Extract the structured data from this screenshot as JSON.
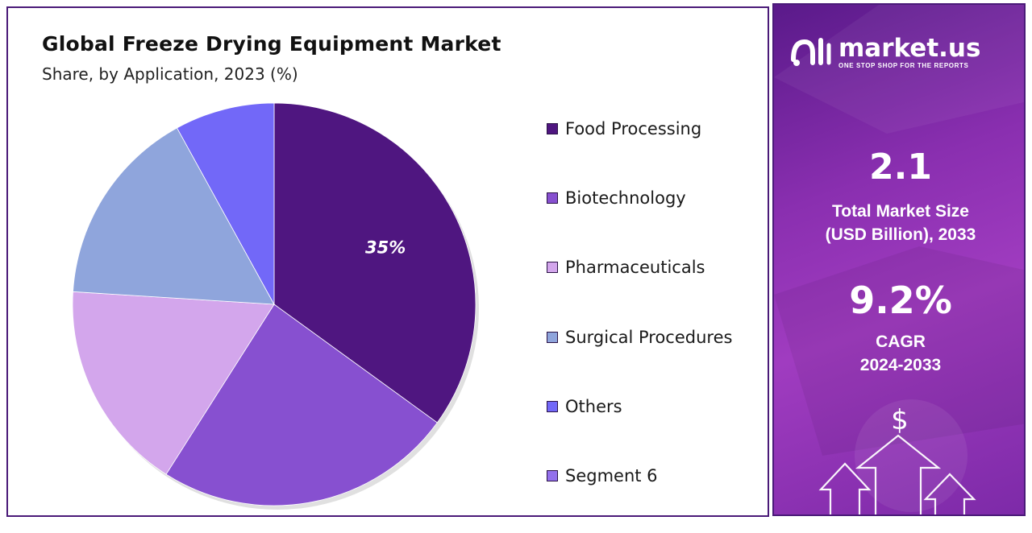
{
  "chart_data": {
    "type": "pie",
    "title": "Global Freeze Drying Equipment Market",
    "subtitle": "Share, by Application, 2023 (%)",
    "labels": [
      "Food Processing",
      "Biotechnology",
      "Pharmaceuticals",
      "Surgical Procedures",
      "Others",
      "Segment 6"
    ],
    "values": [
      35,
      24,
      17,
      16,
      8,
      0
    ],
    "colors": [
      "#4f1680",
      "#8750d0",
      "#d3a6ec",
      "#8fa5dc",
      "#7268f8",
      "#9370ec"
    ],
    "data_labels": [
      "35%",
      "",
      "",
      "",
      "",
      ""
    ],
    "legend_position": "right"
  },
  "side_panel": {
    "brand_name": "market.us",
    "brand_tagline": "ONE STOP SHOP FOR THE REPORTS",
    "market_size_value": "2.1",
    "market_size_label_line1": "Total Market Size",
    "market_size_label_line2": "(USD Billion), 2033",
    "cagr_value": "9.2%",
    "cagr_label": "CAGR",
    "cagr_period": "2024-2033",
    "dollar_symbol": "$",
    "icons": [
      "market-us-logo-icon",
      "dollar-icon",
      "up-arrow-icon"
    ]
  }
}
